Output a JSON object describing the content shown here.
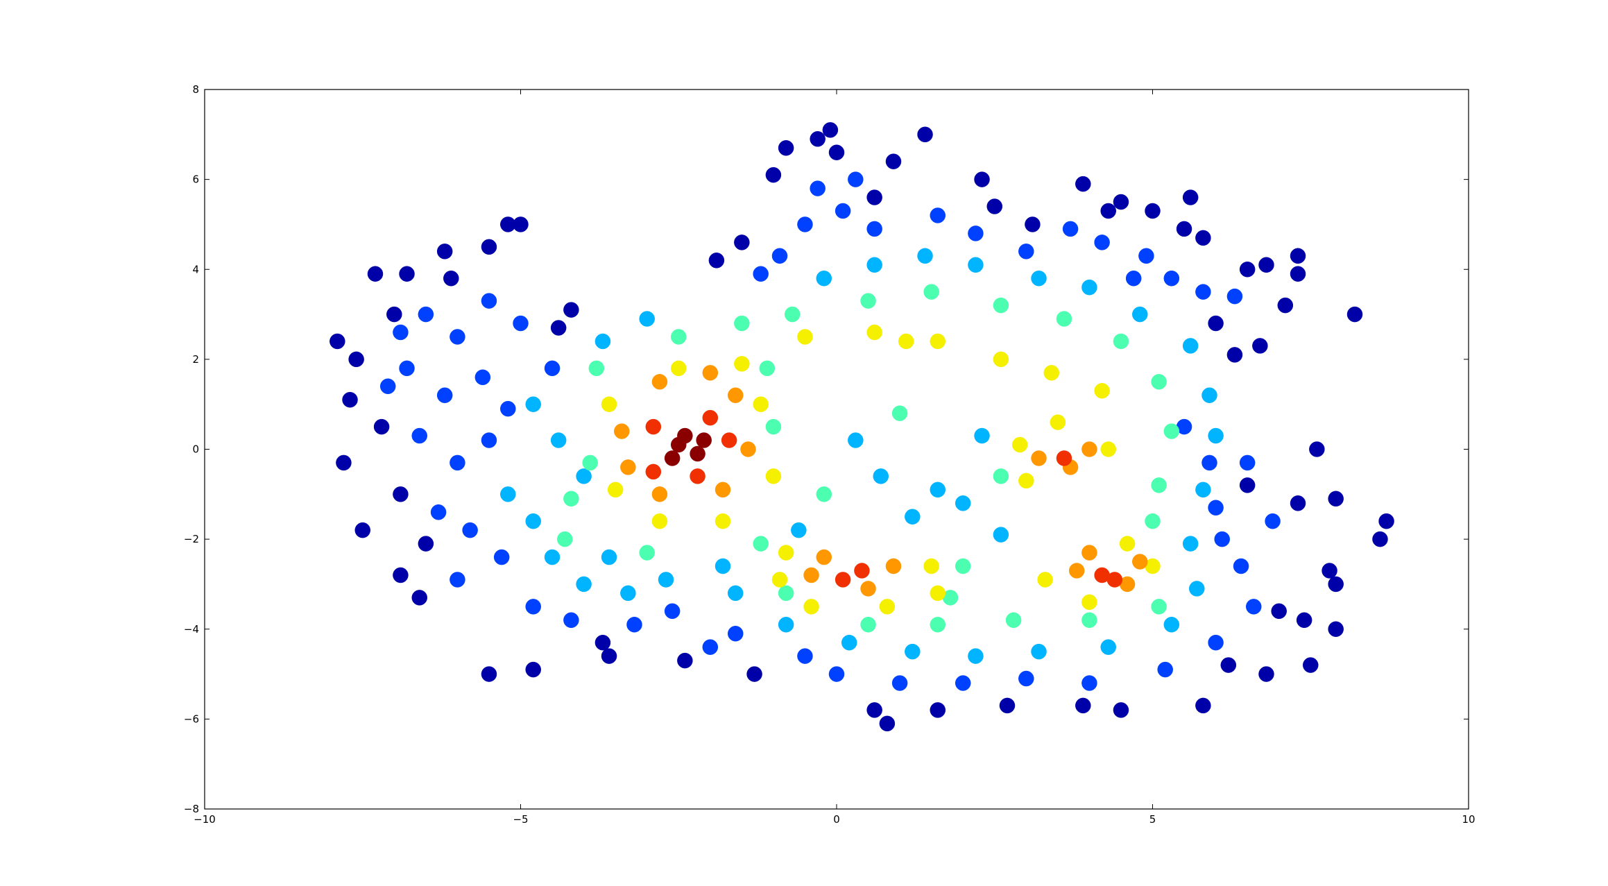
{
  "chart_data": {
    "type": "scatter",
    "xlim": [
      -10,
      10
    ],
    "xticks": [
      {
        "value": -10,
        "label": "−10"
      },
      {
        "value": -5,
        "label": "−5"
      },
      0,
      5,
      10
    ],
    "ylim": [
      -8,
      8
    ],
    "yticks": [
      {
        "value": -8,
        "label": "−8"
      },
      {
        "value": -6,
        "label": "−6"
      },
      {
        "value": -4,
        "label": "−4"
      },
      {
        "value": -2,
        "label": "−2"
      },
      0,
      2,
      4,
      6,
      8
    ],
    "grid": false,
    "series": [
      {
        "color": "#0000a8",
        "x": [
          -0.1,
          1.4,
          -0.3,
          0.0,
          -0.8,
          -1.0,
          0.9,
          2.3,
          3.9,
          4.5,
          5.0,
          5.6,
          5.5,
          5.8,
          6.5,
          7.3,
          7.3,
          6.8,
          8.2,
          6.7,
          6.3,
          7.1,
          6.0,
          -5.2,
          -5.0,
          -7.3,
          -6.8,
          -6.2,
          -5.5,
          -7.9,
          -7.6,
          -7.7,
          -7.2,
          -7.8,
          -6.9,
          -7.5,
          -6.9,
          -6.6,
          -5.5,
          -4.8,
          -3.7,
          -2.4,
          -1.3,
          0.6,
          0.8,
          1.6,
          2.7,
          4.5,
          3.9,
          5.8,
          6.8,
          7.5,
          7.9,
          7.4,
          7.0,
          7.9,
          7.8,
          8.6,
          8.7,
          7.9,
          7.6,
          6.5,
          7.3,
          -1.5,
          -1.9,
          0.6,
          3.1,
          4.3,
          2.5,
          -3.6,
          6.2,
          -4.2,
          -4.4,
          -6.1,
          -7.0,
          -6.5
        ],
        "values": [
          7.1,
          7.0,
          6.9,
          6.6,
          6.7,
          6.1,
          6.4,
          6.0,
          5.9,
          5.5,
          5.3,
          5.6,
          4.9,
          4.7,
          4.0,
          4.3,
          3.9,
          4.1,
          3.0,
          2.3,
          2.1,
          3.2,
          2.8,
          5.0,
          5.0,
          3.9,
          3.9,
          4.4,
          4.5,
          2.4,
          2.0,
          1.1,
          0.5,
          -0.3,
          -1.0,
          -1.8,
          -2.8,
          -3.3,
          -5.0,
          -4.9,
          -4.3,
          -4.7,
          -5.0,
          -5.8,
          -6.1,
          -5.8,
          -5.7,
          -5.8,
          -5.7,
          -5.7,
          -5.0,
          -4.8,
          -4.0,
          -3.8,
          -3.6,
          -3.0,
          -2.7,
          -2.0,
          -1.6,
          -1.1,
          0.0,
          -0.8,
          -1.2,
          4.6,
          4.2,
          5.6,
          5.0,
          5.3,
          5.4,
          -4.6,
          -4.8,
          3.1,
          2.7,
          3.8,
          3.0,
          -2.1
        ]
      },
      {
        "color": "#0040ff",
        "x": [
          -6.5,
          -6.0,
          -5.5,
          -5.0,
          -6.8,
          -6.2,
          -5.6,
          -5.2,
          -6.6,
          -6.0,
          -5.5,
          -6.3,
          -5.8,
          -5.3,
          -6.0,
          -4.8,
          -4.2,
          -3.2,
          -2.6,
          -4.5,
          -6.9,
          -7.1,
          -0.5,
          0.1,
          0.6,
          1.6,
          2.2,
          3.0,
          3.7,
          4.2,
          4.9,
          5.3,
          5.8,
          6.3,
          -0.9,
          -1.2,
          6.5,
          6.9,
          6.0,
          6.4,
          6.6,
          6.0,
          5.2,
          4.0,
          3.0,
          2.0,
          1.0,
          0.0,
          -0.5,
          -1.6,
          -2.0,
          5.9,
          5.5,
          6.1,
          -0.3,
          0.3,
          4.7
        ],
        "values": [
          3.0,
          2.5,
          3.3,
          2.8,
          1.8,
          1.2,
          1.6,
          0.9,
          0.3,
          -0.3,
          0.2,
          -1.4,
          -1.8,
          -2.4,
          -2.9,
          -3.5,
          -3.8,
          -3.9,
          -3.6,
          1.8,
          2.6,
          1.4,
          5.0,
          5.3,
          4.9,
          5.2,
          4.8,
          4.4,
          4.9,
          4.6,
          4.3,
          3.8,
          3.5,
          3.4,
          4.3,
          3.9,
          -0.3,
          -1.6,
          -1.3,
          -2.6,
          -3.5,
          -4.3,
          -4.9,
          -5.2,
          -5.1,
          -5.2,
          -5.2,
          -5.0,
          -4.6,
          -4.1,
          -4.4,
          -0.3,
          0.5,
          -2.0,
          5.8,
          6.0,
          3.8
        ]
      },
      {
        "color": "#00b4ff",
        "x": [
          -5.2,
          -4.8,
          -4.5,
          -4.0,
          -3.3,
          -2.7,
          -3.6,
          -4.4,
          -4.0,
          -3.7,
          -3.0,
          -4.8,
          -0.2,
          0.6,
          1.4,
          2.2,
          3.2,
          4.0,
          4.8,
          5.6,
          5.9,
          6.0,
          5.8,
          5.6,
          5.7,
          5.3,
          4.3,
          3.2,
          2.2,
          1.2,
          0.2,
          -0.8,
          -1.6,
          0.7,
          1.6,
          1.2,
          0.3,
          2.3,
          2.0,
          -0.6,
          -1.8,
          2.6
        ],
        "values": [
          -1.0,
          -1.6,
          -2.4,
          -3.0,
          -3.2,
          -2.9,
          -2.4,
          0.2,
          -0.6,
          2.4,
          2.9,
          1.0,
          3.8,
          4.1,
          4.3,
          4.1,
          3.8,
          3.6,
          3.0,
          2.3,
          1.2,
          0.3,
          -0.9,
          -2.1,
          -3.1,
          -3.9,
          -4.4,
          -4.5,
          -4.6,
          -4.5,
          -4.3,
          -3.9,
          -3.2,
          -0.6,
          -0.9,
          -1.5,
          0.2,
          0.3,
          -1.2,
          -1.8,
          -2.6,
          -1.9
        ]
      },
      {
        "color": "#4cffb0",
        "x": [
          -4.2,
          -3.8,
          -3.0,
          -2.5,
          -1.5,
          -0.7,
          0.5,
          1.5,
          2.6,
          3.6,
          4.5,
          5.1,
          5.3,
          5.1,
          5.0,
          5.1,
          4.0,
          2.8,
          1.6,
          0.5,
          -0.8,
          -1.2,
          -1.0,
          1.0,
          2.6,
          -0.2,
          -3.9,
          -1.1,
          2.0,
          1.8,
          -4.3
        ],
        "values": [
          -1.1,
          1.8,
          -2.3,
          2.5,
          2.8,
          3.0,
          3.3,
          3.5,
          3.2,
          2.9,
          2.4,
          1.5,
          0.4,
          -0.8,
          -1.6,
          -3.5,
          -3.8,
          -3.8,
          -3.9,
          -3.9,
          -3.2,
          -2.1,
          0.5,
          0.8,
          -0.6,
          -1.0,
          -0.3,
          1.8,
          -2.6,
          -3.3,
          -2.0
        ]
      },
      {
        "color": "#f5f000",
        "x": [
          -3.6,
          -3.5,
          -2.8,
          -1.8,
          -1.0,
          -1.2,
          -1.5,
          -2.5,
          -0.5,
          0.6,
          1.6,
          2.6,
          3.4,
          4.2,
          1.1,
          2.9,
          4.3,
          3.5,
          3.0,
          -0.9,
          -0.4,
          0.8,
          1.5,
          3.3,
          4.0,
          5.0,
          4.6,
          1.6,
          -0.8
        ],
        "values": [
          1.0,
          -0.9,
          -1.6,
          -1.6,
          -0.6,
          1.0,
          1.9,
          1.8,
          2.5,
          2.6,
          2.4,
          2.0,
          1.7,
          1.3,
          2.4,
          0.1,
          0.0,
          0.6,
          -0.7,
          -2.9,
          -3.5,
          -3.5,
          -2.6,
          -2.9,
          -3.4,
          -2.6,
          -2.1,
          -3.2,
          -2.3
        ]
      },
      {
        "color": "#ff9800",
        "x": [
          -2.8,
          -2.0,
          -1.6,
          -3.4,
          -3.3,
          -1.4,
          -1.8,
          -2.8,
          3.2,
          3.7,
          4.0,
          -0.4,
          0.5,
          0.9,
          -0.2,
          3.8,
          4.6,
          4.8,
          4.0
        ],
        "values": [
          1.5,
          1.7,
          1.2,
          0.4,
          -0.4,
          0.0,
          -0.9,
          -1.0,
          -0.2,
          -0.4,
          0.0,
          -2.8,
          -3.1,
          -2.6,
          -2.4,
          -2.7,
          -3.0,
          -2.5,
          -2.3
        ]
      },
      {
        "color": "#f03000",
        "x": [
          -2.9,
          -2.0,
          -1.7,
          -2.9,
          -2.2,
          0.1,
          0.4,
          4.2,
          4.4,
          3.6
        ],
        "values": [
          0.5,
          0.7,
          0.2,
          -0.5,
          -0.6,
          -2.9,
          -2.7,
          -2.8,
          -2.9,
          -0.2
        ]
      },
      {
        "color": "#8a0000",
        "x": [
          -2.5,
          -2.2,
          -2.6,
          -2.1,
          -2.4
        ],
        "values": [
          0.1,
          -0.1,
          -0.2,
          0.2,
          0.3
        ]
      }
    ]
  }
}
